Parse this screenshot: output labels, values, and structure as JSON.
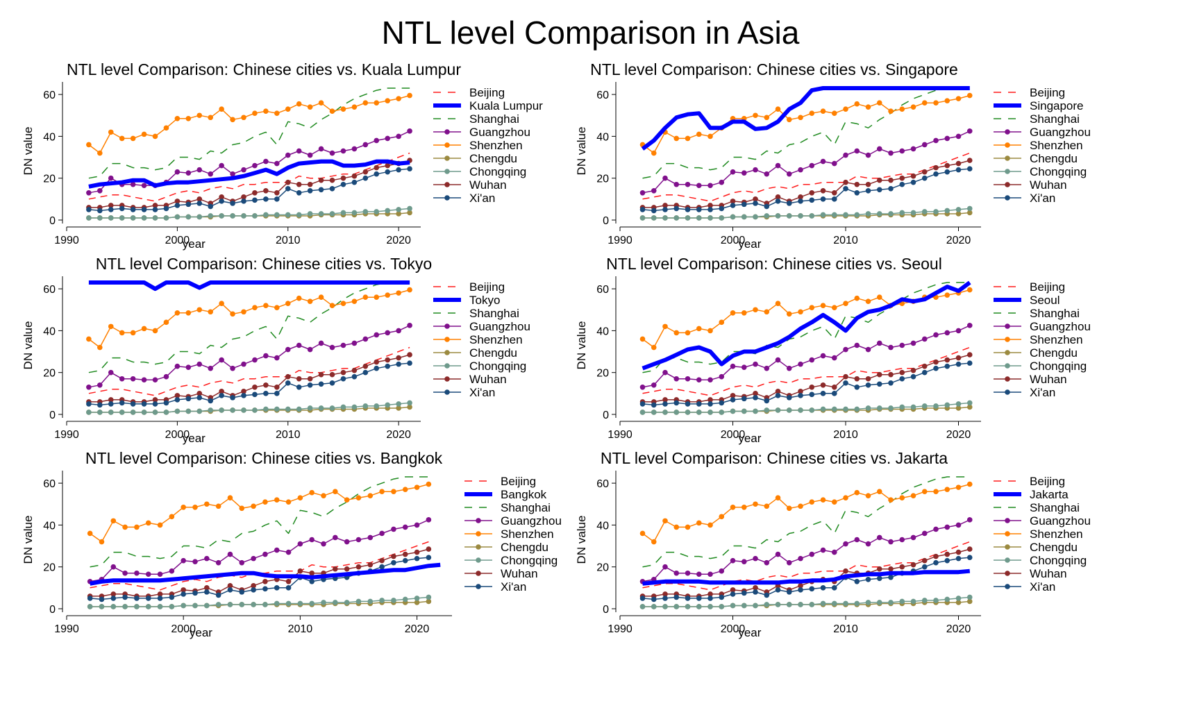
{
  "title": "NTL level Comparison in Asia",
  "colors": {
    "Beijing": "#ff1a1a",
    "focal": "#0000ff",
    "Shanghai": "#1f8a1f",
    "Guangzhou": "#80108c",
    "Shenzhen": "#ff8000",
    "Chengdu": "#9b8a40",
    "Chongqing": "#6e9a8c",
    "Wuhan": "#8c2a2a",
    "Xian": "#1a4a7a"
  },
  "chart_data": [
    {
      "type": "line",
      "title": "NTL level Comparison: Chinese cities vs. Kuala Lumpur",
      "xlabel": "year",
      "ylabel": "DN value",
      "xlim": [
        1990,
        2022
      ],
      "ylim": [
        0,
        66
      ],
      "xticks": [
        "1990",
        "2000",
        "2010",
        "2020"
      ],
      "yticks": [
        "0",
        "20",
        "40",
        "60"
      ],
      "legend_position": "right",
      "focal": {
        "name": "Kuala Lumpur",
        "x": [
          1992,
          1993,
          1994,
          1995,
          1996,
          1997,
          1998,
          1999,
          2000,
          2001,
          2002,
          2003,
          2004,
          2005,
          2006,
          2007,
          2008,
          2009,
          2010,
          2011,
          2012,
          2013,
          2014,
          2015,
          2016,
          2017,
          2018,
          2019,
          2020,
          2021
        ],
        "values": [
          16,
          17,
          17.5,
          18,
          19,
          19,
          16.5,
          17.5,
          18,
          18,
          18.5,
          19,
          19.5,
          20,
          21,
          22.5,
          24,
          22,
          25,
          27,
          27.5,
          28,
          28,
          26,
          26,
          26.5,
          28,
          28,
          27,
          27.5
        ]
      },
      "series_labels": [
        "Beijing",
        "Kuala Lumpur",
        "Shanghai",
        "Guangzhou",
        "Shenzhen",
        "Chengdu",
        "Chongqing",
        "Wuhan",
        "Xi'an"
      ]
    },
    {
      "type": "line",
      "title": "NTL level Comparison: Chinese cities vs. Singapore",
      "xlabel": "year",
      "ylabel": "DN value",
      "xlim": [
        1990,
        2022
      ],
      "ylim": [
        0,
        66
      ],
      "xticks": [
        "1990",
        "2000",
        "2010",
        "2020"
      ],
      "yticks": [
        "0",
        "20",
        "40",
        "60"
      ],
      "legend_position": "right",
      "focal": {
        "name": "Singapore",
        "x": [
          1992,
          1993,
          1994,
          1995,
          1996,
          1997,
          1998,
          1999,
          2000,
          2001,
          2002,
          2003,
          2004,
          2005,
          2006,
          2007,
          2008,
          2009,
          2010,
          2011,
          2012,
          2013,
          2014,
          2015,
          2016,
          2017,
          2018,
          2019,
          2020,
          2021
        ],
        "values": [
          34,
          38,
          44,
          49,
          50.5,
          51,
          44,
          44,
          47,
          47,
          43.5,
          44,
          47,
          53,
          56,
          62,
          63,
          63,
          63,
          63,
          63,
          63,
          63,
          63,
          63,
          63,
          63,
          63,
          63,
          63
        ]
      },
      "series_labels": [
        "Beijing",
        "Singapore",
        "Shanghai",
        "Guangzhou",
        "Shenzhen",
        "Chengdu",
        "Chongqing",
        "Wuhan",
        "Xi'an"
      ]
    },
    {
      "type": "line",
      "title": "NTL level Comparison: Chinese cities vs. Tokyo",
      "xlabel": "year",
      "ylabel": "DN value",
      "xlim": [
        1990,
        2022
      ],
      "ylim": [
        0,
        66
      ],
      "xticks": [
        "1990",
        "2000",
        "2010",
        "2020"
      ],
      "yticks": [
        "0",
        "20",
        "40",
        "60"
      ],
      "legend_position": "right",
      "focal": {
        "name": "Tokyo",
        "x": [
          1992,
          1993,
          1994,
          1995,
          1996,
          1997,
          1998,
          1999,
          2000,
          2001,
          2002,
          2003,
          2004,
          2005,
          2006,
          2007,
          2008,
          2009,
          2010,
          2011,
          2012,
          2013,
          2014,
          2015,
          2016,
          2017,
          2018,
          2019,
          2020,
          2021
        ],
        "values": [
          63,
          63,
          63,
          63,
          63,
          63,
          60,
          63,
          63,
          63,
          60.5,
          63,
          63,
          63,
          63,
          63,
          63,
          63,
          63,
          63,
          63,
          63,
          63,
          63,
          63,
          63,
          63,
          63,
          63,
          63
        ]
      },
      "series_labels": [
        "Beijing",
        "Tokyo",
        "Shanghai",
        "Guangzhou",
        "Shenzhen",
        "Chengdu",
        "Chongqing",
        "Wuhan",
        "Xi'an"
      ]
    },
    {
      "type": "line",
      "title": "NTL level Comparison: Chinese cities vs. Seoul",
      "xlabel": "year",
      "ylabel": "DN value",
      "xlim": [
        1990,
        2022
      ],
      "ylim": [
        0,
        66
      ],
      "xticks": [
        "1990",
        "2000",
        "2010",
        "2020"
      ],
      "yticks": [
        "0",
        "20",
        "40",
        "60"
      ],
      "legend_position": "right",
      "focal": {
        "name": "Seoul",
        "x": [
          1992,
          1993,
          1994,
          1995,
          1996,
          1997,
          1998,
          1999,
          2000,
          2001,
          2002,
          2003,
          2004,
          2005,
          2006,
          2007,
          2008,
          2009,
          2010,
          2011,
          2012,
          2013,
          2014,
          2015,
          2016,
          2017,
          2018,
          2019,
          2020,
          2021
        ],
        "values": [
          22,
          24,
          26,
          28.5,
          31,
          32,
          30,
          24,
          28,
          30,
          30,
          32,
          34,
          37,
          41,
          44,
          47.5,
          44,
          40,
          46,
          49,
          50,
          52,
          55,
          54,
          55,
          58,
          61,
          59,
          63
        ]
      },
      "series_labels": [
        "Beijing",
        "Seoul",
        "Shanghai",
        "Guangzhou",
        "Shenzhen",
        "Chengdu",
        "Chongqing",
        "Wuhan",
        "Xi'an"
      ]
    },
    {
      "type": "line",
      "title": "NTL level Comparison: Chinese cities vs. Bangkok",
      "xlabel": "year",
      "ylabel": "DN value",
      "xlim": [
        1990,
        2023
      ],
      "ylim": [
        0,
        66
      ],
      "xticks": [
        "1990",
        "2000",
        "2010",
        "2020"
      ],
      "yticks": [
        "0",
        "20",
        "40",
        "60"
      ],
      "legend_position": "right",
      "focal": {
        "name": "Bangkok",
        "x": [
          1992,
          1993,
          1994,
          1995,
          1996,
          1997,
          1998,
          1999,
          2000,
          2001,
          2002,
          2003,
          2004,
          2005,
          2006,
          2007,
          2008,
          2009,
          2010,
          2011,
          2012,
          2013,
          2014,
          2015,
          2016,
          2017,
          2018,
          2019,
          2020,
          2021,
          2022
        ],
        "values": [
          12,
          13,
          13.5,
          13.5,
          13.5,
          13.5,
          13.5,
          14,
          14.5,
          15,
          15.5,
          16,
          16.5,
          17,
          17,
          16,
          15.5,
          15.5,
          15.5,
          15,
          15.5,
          16,
          16.5,
          17,
          17.5,
          18,
          18.5,
          18.5,
          19.5,
          20.5,
          21
        ]
      },
      "series_labels": [
        "Beijing",
        "Bangkok",
        "Shanghai",
        "Guangzhou",
        "Shenzhen",
        "Chengdu",
        "Chongqing",
        "Wuhan",
        "Xi'an"
      ]
    },
    {
      "type": "line",
      "title": "NTL level Comparison: Chinese cities vs. Jakarta",
      "xlabel": "year",
      "ylabel": "DN value",
      "xlim": [
        1990,
        2022
      ],
      "ylim": [
        0,
        66
      ],
      "xticks": [
        "1990",
        "2000",
        "2010",
        "2020"
      ],
      "yticks": [
        "0",
        "20",
        "40",
        "60"
      ],
      "legend_position": "right",
      "focal": {
        "name": "Jakarta",
        "x": [
          1992,
          1993,
          1994,
          1995,
          1996,
          1997,
          1998,
          1999,
          2000,
          2001,
          2002,
          2003,
          2004,
          2005,
          2006,
          2007,
          2008,
          2009,
          2010,
          2011,
          2012,
          2013,
          2014,
          2015,
          2016,
          2017,
          2018,
          2019,
          2020,
          2021
        ],
        "values": [
          12,
          12.5,
          13,
          13,
          13,
          13,
          12.5,
          12.5,
          12.5,
          12.5,
          12.5,
          12.5,
          12.5,
          13,
          13,
          13.5,
          13.5,
          14,
          15.5,
          16,
          16.5,
          16.5,
          17,
          17,
          17,
          17.5,
          17.5,
          17.5,
          17.5,
          18
        ]
      },
      "series_labels": [
        "Beijing",
        "Jakarta",
        "Shanghai",
        "Guangzhou",
        "Shenzhen",
        "Chengdu",
        "Chongqing",
        "Wuhan",
        "Xi'an"
      ]
    }
  ],
  "shared_series": {
    "x": [
      1992,
      1993,
      1994,
      1995,
      1996,
      1997,
      1998,
      1999,
      2000,
      2001,
      2002,
      2003,
      2004,
      2005,
      2006,
      2007,
      2008,
      2009,
      2010,
      2011,
      2012,
      2013,
      2014,
      2015,
      2016,
      2017,
      2018,
      2019,
      2020,
      2021
    ],
    "Beijing": [
      10,
      11,
      12,
      12,
      11,
      10,
      9,
      11,
      13,
      14,
      13,
      15,
      16,
      15,
      17,
      17,
      18,
      18,
      18,
      21,
      20,
      20,
      21,
      22,
      22,
      24,
      26,
      28,
      30,
      32
    ],
    "Shanghai": [
      20,
      21,
      27,
      27,
      25,
      25,
      24,
      25,
      30,
      30,
      29,
      33,
      32,
      36,
      37,
      40,
      42,
      36,
      47,
      46,
      44,
      48,
      51,
      55,
      58,
      60,
      62,
      63,
      63,
      63
    ],
    "Guangzhou": [
      13,
      14,
      20,
      17,
      17,
      16.5,
      16.5,
      18,
      23,
      22.5,
      24,
      22,
      26,
      22,
      24,
      26,
      28,
      27,
      31,
      33,
      31,
      34,
      32,
      33,
      34,
      36,
      38,
      39,
      40,
      42.5
    ],
    "Shenzhen": [
      36,
      32,
      42,
      39,
      39,
      41,
      40,
      44,
      48.5,
      48.5,
      50,
      49,
      53,
      48,
      49,
      51,
      52,
      51,
      53,
      55.5,
      54,
      56,
      52,
      53,
      54,
      56,
      56,
      57,
      58,
      59.5
    ],
    "Chengdu": [
      1,
      1,
      1,
      1,
      1,
      1,
      1,
      1,
      1.5,
      1.5,
      1.5,
      1.5,
      2,
      2,
      2,
      2,
      2,
      2,
      2,
      2,
      2,
      2.5,
      2.5,
      2.5,
      2.5,
      3,
      3,
      3,
      3,
      3.5
    ],
    "Chongqing": [
      1,
      1,
      1,
      1,
      1,
      1,
      1,
      1,
      1.5,
      1.5,
      1.5,
      2,
      2,
      2,
      2,
      2,
      2.5,
      2.5,
      2.5,
      2.5,
      3,
      3,
      3,
      3.5,
      3.5,
      4,
      4,
      4.5,
      5,
      5.5
    ],
    "Wuhan": [
      6,
      6,
      7,
      7,
      6,
      6,
      7,
      7,
      9,
      8.5,
      10,
      8,
      11,
      9,
      11,
      13,
      14,
      13,
      18,
      17,
      17,
      19,
      19,
      20,
      21,
      23,
      25,
      26,
      27,
      28.5
    ],
    "Xian": [
      5,
      4.5,
      5,
      5.5,
      5,
      5,
      5,
      5.5,
      7,
      7.5,
      8,
      6.5,
      9,
      8,
      9,
      9.5,
      10,
      10,
      15,
      13,
      14,
      14.5,
      15,
      17,
      18,
      20,
      22,
      23,
      24,
      24.5
    ]
  }
}
